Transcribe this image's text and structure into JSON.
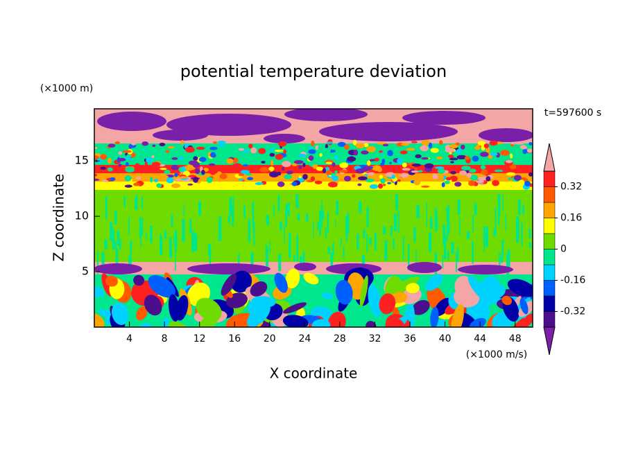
{
  "chart_data": {
    "type": "contour",
    "title": "potential temperature deviation",
    "x_label": "X coordinate",
    "y_label": "Z coordinate",
    "x_unit": "(×1000 m/s)",
    "y_unit": "(×1000 m)",
    "time_label": "t=597600 s",
    "xlim": [
      0,
      50
    ],
    "xticks": [
      4,
      8,
      12,
      16,
      20,
      24,
      28,
      32,
      36,
      40,
      44,
      48
    ],
    "ylim": [
      0,
      19.7
    ],
    "yticks": [
      5,
      10,
      15
    ],
    "levels": [
      -0.4,
      -0.32,
      -0.24,
      -0.16,
      -0.08,
      0,
      0.08,
      0.16,
      0.24,
      0.32,
      0.4
    ],
    "colors": [
      "#7a1fa8",
      "#4b0f8c",
      "#0000a8",
      "#0060ff",
      "#00d2ff",
      "#00e68c",
      "#6edc00",
      "#ffff00",
      "#ffa500",
      "#ff5a00",
      "#ff2020",
      "#f4a6a6"
    ],
    "colorbar_ticks": [
      -0.32,
      -0.16,
      0,
      0.16,
      0.32
    ]
  }
}
